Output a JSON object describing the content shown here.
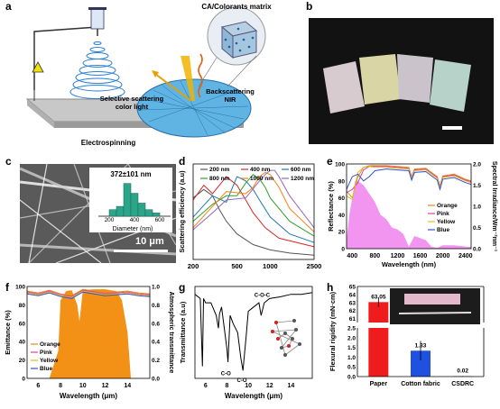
{
  "panel_labels": {
    "a": "a",
    "b": "b",
    "c": "c",
    "d": "d",
    "e": "e",
    "f": "f",
    "g": "g",
    "h": "h"
  },
  "panel_a": {
    "matrix_label": "CA/Colorants matrix",
    "scatter_label_1": "Selective scattering",
    "scatter_label_2": "color light",
    "back_label_1": "Backscattering",
    "back_label_2": "NIR",
    "process_label": "Electrospinning"
  },
  "panel_b": {
    "fabric_colors": [
      "#d8cbd0",
      "#d9d5a5",
      "#cbc3cb",
      "#b7d2c8"
    ]
  },
  "panel_c": {
    "inset_title": "372±101 nm",
    "inset_xlabel": "Diameter (nm)",
    "inset_ticks": [
      "200",
      "400",
      "600"
    ],
    "scalebar": "10 μm",
    "histogram": [
      {
        "bin": 250,
        "count": 2
      },
      {
        "bin": 300,
        "count": 3
      },
      {
        "bin": 350,
        "count": 10
      },
      {
        "bin": 400,
        "count": 7
      },
      {
        "bin": 450,
        "count": 4
      },
      {
        "bin": 500,
        "count": 2
      },
      {
        "bin": 550,
        "count": 1
      }
    ]
  },
  "chart_data": [
    {
      "id": "d",
      "type": "line",
      "ylabel": "Scattering efficiency (a.u)",
      "xlim": [
        200,
        2500
      ],
      "ylim": [
        0,
        4.5
      ],
      "xticks": [
        "200",
        "500",
        "1000",
        "2500"
      ],
      "yticks": [
        "0",
        "1",
        "2",
        "3",
        "4"
      ],
      "legend": [
        "200 nm",
        "400 nm",
        "600 nm",
        "800 nm",
        "1000 nm",
        "1200 nm"
      ],
      "series": [
        {
          "name": "200 nm",
          "color": "#555555",
          "x": [
            200,
            250,
            300,
            350,
            400,
            500,
            700,
            1000,
            1500,
            2500
          ],
          "y": [
            2.9,
            3.3,
            3.0,
            2.3,
            1.8,
            1.2,
            0.7,
            0.45,
            0.3,
            0.2
          ]
        },
        {
          "name": "400 nm",
          "color": "#d62728",
          "x": [
            200,
            250,
            300,
            400,
            500,
            600,
            700,
            900,
            1200,
            2500
          ],
          "y": [
            2.8,
            3.5,
            3.1,
            3.9,
            3.5,
            2.8,
            2.2,
            1.5,
            1.0,
            0.6
          ]
        },
        {
          "name": "600 nm",
          "color": "#1f77b4",
          "x": [
            200,
            300,
            400,
            500,
            600,
            700,
            800,
            1000,
            1500,
            2500
          ],
          "y": [
            2.0,
            3.0,
            2.7,
            3.9,
            3.7,
            3.3,
            2.8,
            2.0,
            1.2,
            0.8
          ]
        },
        {
          "name": "800 nm",
          "color": "#2ca02c",
          "x": [
            200,
            300,
            400,
            500,
            600,
            700,
            800,
            900,
            1000,
            1500,
            2500
          ],
          "y": [
            1.8,
            2.6,
            3.0,
            3.0,
            3.6,
            4.0,
            3.8,
            3.4,
            2.9,
            1.8,
            1.1
          ]
        },
        {
          "name": "1000 nm",
          "color": "#ff7f0e",
          "x": [
            200,
            300,
            400,
            600,
            700,
            800,
            900,
            1000,
            1200,
            1500,
            2500
          ],
          "y": [
            1.5,
            2.5,
            3.2,
            3.1,
            3.4,
            3.9,
            4.1,
            4.0,
            3.4,
            2.4,
            1.3
          ]
        },
        {
          "name": "1200 nm",
          "color": "#9467bd",
          "x": [
            200,
            300,
            400,
            600,
            800,
            900,
            1000,
            1100,
            1200,
            1500,
            2500
          ],
          "y": [
            1.4,
            2.2,
            2.8,
            2.9,
            3.7,
            4.0,
            4.2,
            4.2,
            3.9,
            3.0,
            1.5
          ]
        }
      ]
    },
    {
      "id": "e",
      "type": "line",
      "xlabel": "Wavelength (nm)",
      "ylabel": "Reflectance (%)",
      "y2label": "Spectral Irradiance/Wm⁻²nm⁻¹",
      "xlim": [
        300,
        2500
      ],
      "ylim": [
        0,
        100
      ],
      "y2lim": [
        0,
        2.0
      ],
      "xticks": [
        "400",
        "800",
        "1200",
        "1600",
        "2000",
        "2400"
      ],
      "yticks": [
        "0",
        "20",
        "40",
        "60",
        "80",
        "100"
      ],
      "y2ticks": [
        "0.0",
        "0.5",
        "1.0",
        "1.5",
        "2.0"
      ],
      "legend": [
        "Orange",
        "Pink",
        "Yellow",
        "Blue"
      ],
      "series": [
        {
          "name": "Orange",
          "color": "#e0901a",
          "x": [
            300,
            400,
            500,
            600,
            700,
            800,
            1000,
            1200,
            1400,
            1450,
            1500,
            1700,
            1900,
            1950,
            2000,
            2200,
            2400,
            2500
          ],
          "y": [
            68,
            60,
            85,
            96,
            98,
            98,
            98,
            97,
            96,
            85,
            94,
            95,
            85,
            74,
            86,
            88,
            82,
            80
          ]
        },
        {
          "name": "Pink",
          "color": "#e040a0",
          "x": [
            300,
            400,
            500,
            600,
            700,
            800,
            1000,
            1200,
            1400,
            1450,
            1500,
            1700,
            1900,
            1950,
            2000,
            2200,
            2400,
            2500
          ],
          "y": [
            66,
            70,
            78,
            93,
            97,
            97,
            97,
            96,
            95,
            84,
            93,
            94,
            84,
            73,
            85,
            87,
            81,
            79
          ]
        },
        {
          "name": "Yellow",
          "color": "#d8c020",
          "x": [
            300,
            400,
            500,
            600,
            700,
            800,
            1000,
            1200,
            1400,
            1450,
            1500,
            1700,
            1900,
            1950,
            2000,
            2200,
            2400,
            2500
          ],
          "y": [
            62,
            58,
            90,
            96,
            97,
            96,
            96,
            95,
            94,
            83,
            92,
            93,
            83,
            72,
            84,
            86,
            80,
            78
          ]
        },
        {
          "name": "Blue",
          "color": "#3050d0",
          "x": [
            300,
            400,
            500,
            600,
            700,
            800,
            1000,
            1200,
            1400,
            1450,
            1500,
            1700,
            1900,
            1950,
            2000,
            2200,
            2400,
            2500
          ],
          "y": [
            70,
            85,
            88,
            80,
            85,
            92,
            94,
            93,
            92,
            81,
            90,
            91,
            81,
            70,
            82,
            84,
            78,
            76
          ]
        },
        {
          "name": "irradiance",
          "color": "#ee82ee",
          "x": [
            300,
            350,
            400,
            450,
            500,
            550,
            600,
            700,
            800,
            900,
            1000,
            1100,
            1200,
            1300,
            1400,
            1500,
            1600,
            1700,
            1800,
            1900,
            2000,
            2200,
            2400,
            2500
          ],
          "y": [
            0.2,
            0.8,
            1.2,
            1.6,
            1.6,
            1.55,
            1.5,
            1.3,
            1.1,
            0.8,
            0.7,
            0.5,
            0.45,
            0.35,
            0.05,
            0.3,
            0.25,
            0.2,
            0.05,
            0.02,
            0.08,
            0.08,
            0.05,
            0.04
          ]
        }
      ]
    },
    {
      "id": "f",
      "type": "line",
      "xlabel": "Wavelength (μm)",
      "ylabel": "Emittance (%)",
      "y2label": "Atmospheric transmittance",
      "xlim": [
        5,
        16
      ],
      "ylim": [
        0,
        100
      ],
      "y2lim": [
        0,
        1.0
      ],
      "xticks": [
        "6",
        "8",
        "10",
        "12",
        "14"
      ],
      "yticks": [
        "0",
        "20",
        "40",
        "60",
        "80",
        "100"
      ],
      "y2ticks": [
        "0.0",
        "0.2",
        "0.4",
        "0.6",
        "0.8",
        "1.0"
      ],
      "legend": [
        "Orange",
        "Pink",
        "Yellow",
        "Blue"
      ],
      "series": [
        {
          "name": "Orange",
          "color": "#e08a1a",
          "x": [
            5,
            6,
            7,
            8,
            9,
            10,
            11,
            12,
            13,
            14,
            15,
            16
          ],
          "y": [
            95,
            93,
            96,
            92,
            90,
            97,
            95,
            93,
            94,
            95,
            93,
            92
          ]
        },
        {
          "name": "Pink",
          "color": "#e040a0",
          "x": [
            5,
            6,
            7,
            8,
            9,
            10,
            11,
            12,
            13,
            14,
            15,
            16
          ],
          "y": [
            94,
            92,
            95,
            91,
            89,
            96,
            94,
            92,
            93,
            94,
            92,
            91
          ]
        },
        {
          "name": "Yellow",
          "color": "#d8c020",
          "x": [
            5,
            6,
            7,
            8,
            9,
            10,
            11,
            12,
            13,
            14,
            15,
            16
          ],
          "y": [
            93,
            91,
            94,
            90,
            88,
            95,
            93,
            91,
            92,
            93,
            91,
            90
          ]
        },
        {
          "name": "Blue",
          "color": "#3050d0",
          "x": [
            5,
            6,
            7,
            8,
            9,
            10,
            11,
            12,
            13,
            14,
            15,
            16
          ],
          "y": [
            92,
            90,
            93,
            89,
            87,
            94,
            92,
            90,
            91,
            92,
            90,
            89
          ]
        },
        {
          "name": "atmospheric",
          "color": "#f28a0a",
          "x": [
            5,
            7,
            7.8,
            8,
            8.5,
            9,
            9.5,
            9.7,
            10,
            11,
            12,
            13,
            13.5,
            14,
            14.3,
            16
          ],
          "y": [
            0,
            0,
            0.3,
            0.85,
            0.95,
            0.96,
            0.8,
            0.62,
            0.96,
            0.97,
            0.97,
            0.95,
            0.85,
            0.5,
            0,
            0
          ]
        }
      ]
    },
    {
      "id": "g",
      "type": "line",
      "xlabel": "Wavelength (μm)",
      "ylabel": "Transmittance (a.u)",
      "xlim": [
        5,
        16
      ],
      "xticks": [
        "6",
        "8",
        "10",
        "12",
        "14"
      ],
      "annotations": [
        "C-O",
        "C-O",
        "C-O-C"
      ],
      "series": [
        {
          "name": "CA",
          "color": "#000000",
          "x": [
            5,
            5.5,
            5.7,
            5.8,
            6,
            6.5,
            7,
            7.2,
            7.3,
            7.5,
            8,
            8.1,
            8.3,
            8.6,
            9,
            9.3,
            9.5,
            9.8,
            10,
            10.5,
            11,
            11.2,
            11.5,
            12,
            13,
            14,
            15,
            16
          ],
          "y": [
            0.95,
            0.9,
            0.1,
            0.9,
            0.85,
            0.85,
            0.7,
            0.55,
            0.72,
            0.8,
            0.3,
            0.15,
            0.7,
            0.6,
            0.5,
            0.2,
            0.05,
            0.45,
            0.75,
            0.8,
            0.85,
            0.7,
            0.85,
            0.9,
            0.92,
            0.95,
            0.95,
            0.97
          ]
        }
      ]
    },
    {
      "id": "h",
      "type": "bar",
      "ylabel": "Flexural rigidity (mN·cm)",
      "categories": [
        "Paper",
        "Cotton fabric",
        "CSDRC"
      ],
      "values": [
        63.05,
        1.33,
        0.02
      ],
      "errors": [
        0.6,
        0.5,
        0.01
      ],
      "value_labels": [
        "63.05",
        "1.33",
        "0.02"
      ],
      "colors": [
        "#ee1c1c",
        "#2050e0",
        "#7030a0"
      ],
      "yticks_upper": [
        "61",
        "62",
        "63",
        "64",
        "65"
      ],
      "yticks_lower": [
        "0.0",
        "0.5",
        "1.0",
        "1.5",
        "2.0",
        "2.5"
      ],
      "ylim_upper": [
        60.5,
        65
      ],
      "ylim_lower": [
        0,
        2.5
      ]
    }
  ]
}
